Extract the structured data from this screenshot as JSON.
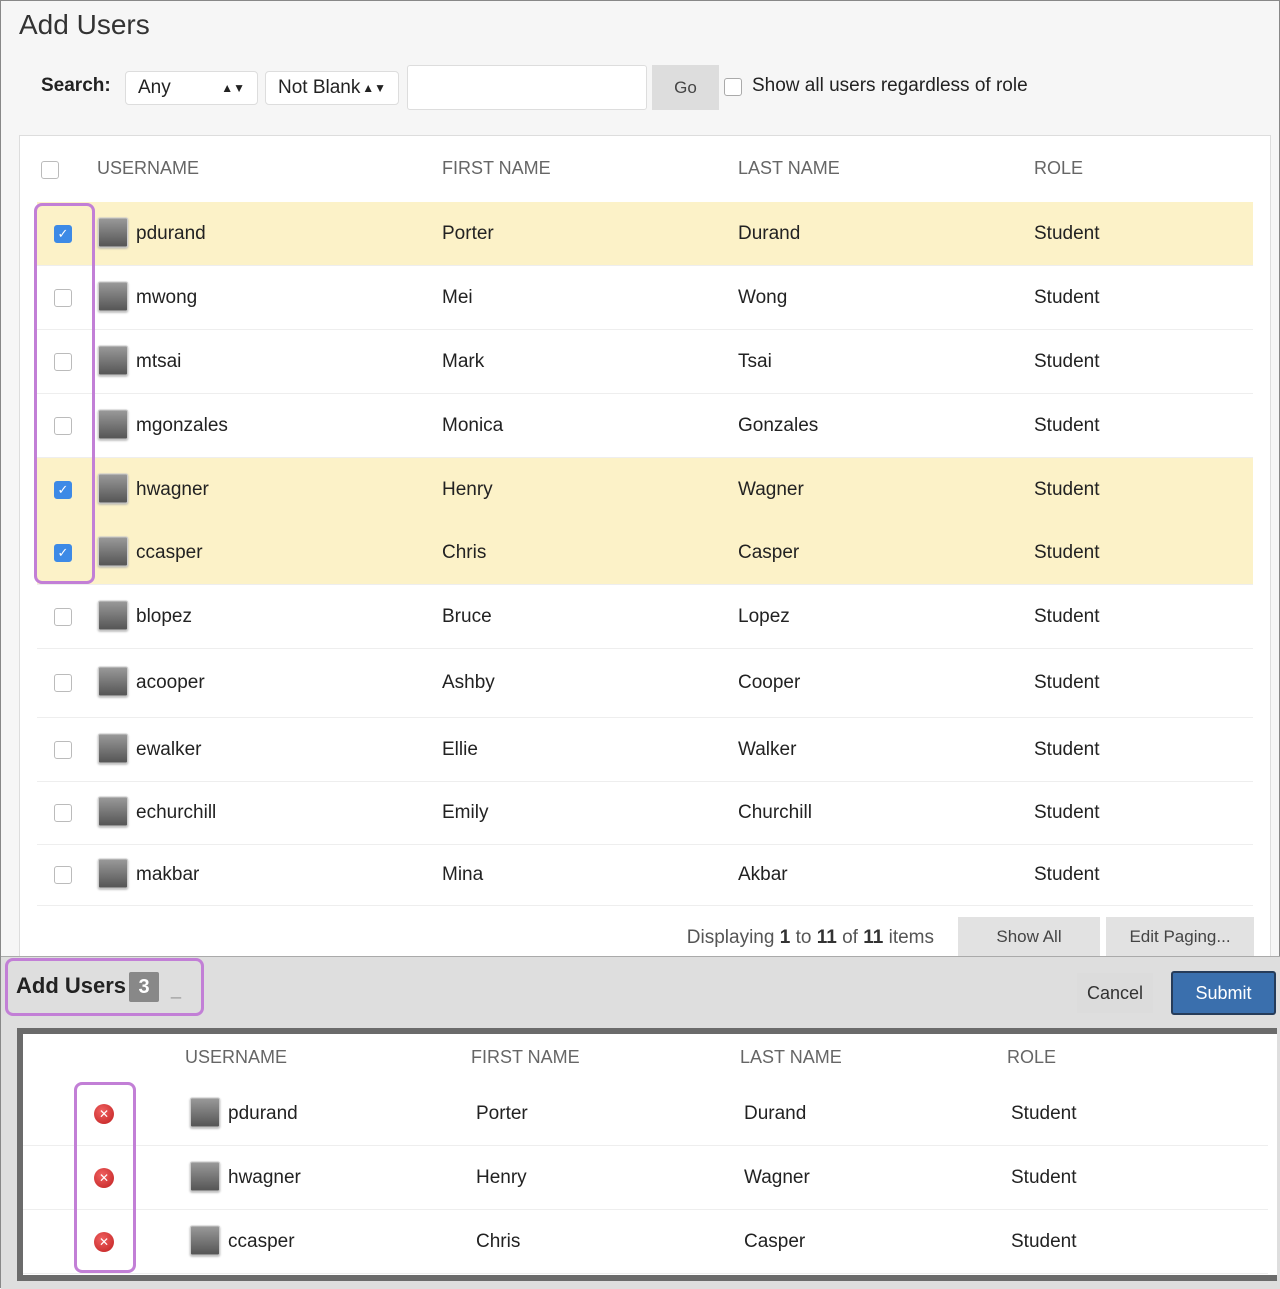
{
  "title": "Add Users",
  "search": {
    "label": "Search:",
    "field": "Any",
    "operator": "Not Blank",
    "value": "",
    "go": "Go",
    "show_all_label": "Show all users regardless of role",
    "show_all_checked": false
  },
  "columns": {
    "username": "USERNAME",
    "first": "FIRST NAME",
    "last": "LAST NAME",
    "role": "ROLE"
  },
  "rows": [
    {
      "username": "pdurand",
      "first": "Porter",
      "last": "Durand",
      "role": "Student",
      "checked": true
    },
    {
      "username": "mwong",
      "first": "Mei",
      "last": "Wong",
      "role": "Student",
      "checked": false
    },
    {
      "username": "mtsai",
      "first": "Mark",
      "last": "Tsai",
      "role": "Student",
      "checked": false
    },
    {
      "username": "mgonzales",
      "first": "Monica",
      "last": "Gonzales",
      "role": "Student",
      "checked": false
    },
    {
      "username": "hwagner",
      "first": "Henry",
      "last": "Wagner",
      "role": "Student",
      "checked": true
    },
    {
      "username": "ccasper",
      "first": "Chris",
      "last": "Casper",
      "role": "Student",
      "checked": true
    },
    {
      "username": "blopez",
      "first": "Bruce",
      "last": "Lopez",
      "role": "Student",
      "checked": false
    },
    {
      "username": "acooper",
      "first": "Ashby",
      "last": "Cooper",
      "role": "Student",
      "checked": false
    },
    {
      "username": "ewalker",
      "first": "Ellie",
      "last": "Walker",
      "role": "Student",
      "checked": false
    },
    {
      "username": "echurchill",
      "first": "Emily",
      "last": "Churchill",
      "role": "Student",
      "checked": false
    },
    {
      "username": "makbar",
      "first": "Mina",
      "last": "Akbar",
      "role": "Student",
      "checked": false
    }
  ],
  "pager": {
    "prefix": "Displaying",
    "from": "1",
    "to_word": "to",
    "to": "11",
    "of_word": "of",
    "total": "11",
    "suffix": "items",
    "show_all": "Show All",
    "edit_paging": "Edit Paging..."
  },
  "tray": {
    "title": "Add Users",
    "count": "3",
    "minimize": "_",
    "cancel": "Cancel",
    "submit": "Submit",
    "rows": [
      {
        "username": "pdurand",
        "first": "Porter",
        "last": "Durand",
        "role": "Student"
      },
      {
        "username": "hwagner",
        "first": "Henry",
        "last": "Wagner",
        "role": "Student"
      },
      {
        "username": "ccasper",
        "first": "Chris",
        "last": "Casper",
        "role": "Student"
      }
    ]
  },
  "colors": {
    "selected_row": "#fcf2c8",
    "checkbox_on": "#3d8ae6",
    "submit": "#3a6fad",
    "highlight": "#c27fd6",
    "remove": "#d03030"
  }
}
